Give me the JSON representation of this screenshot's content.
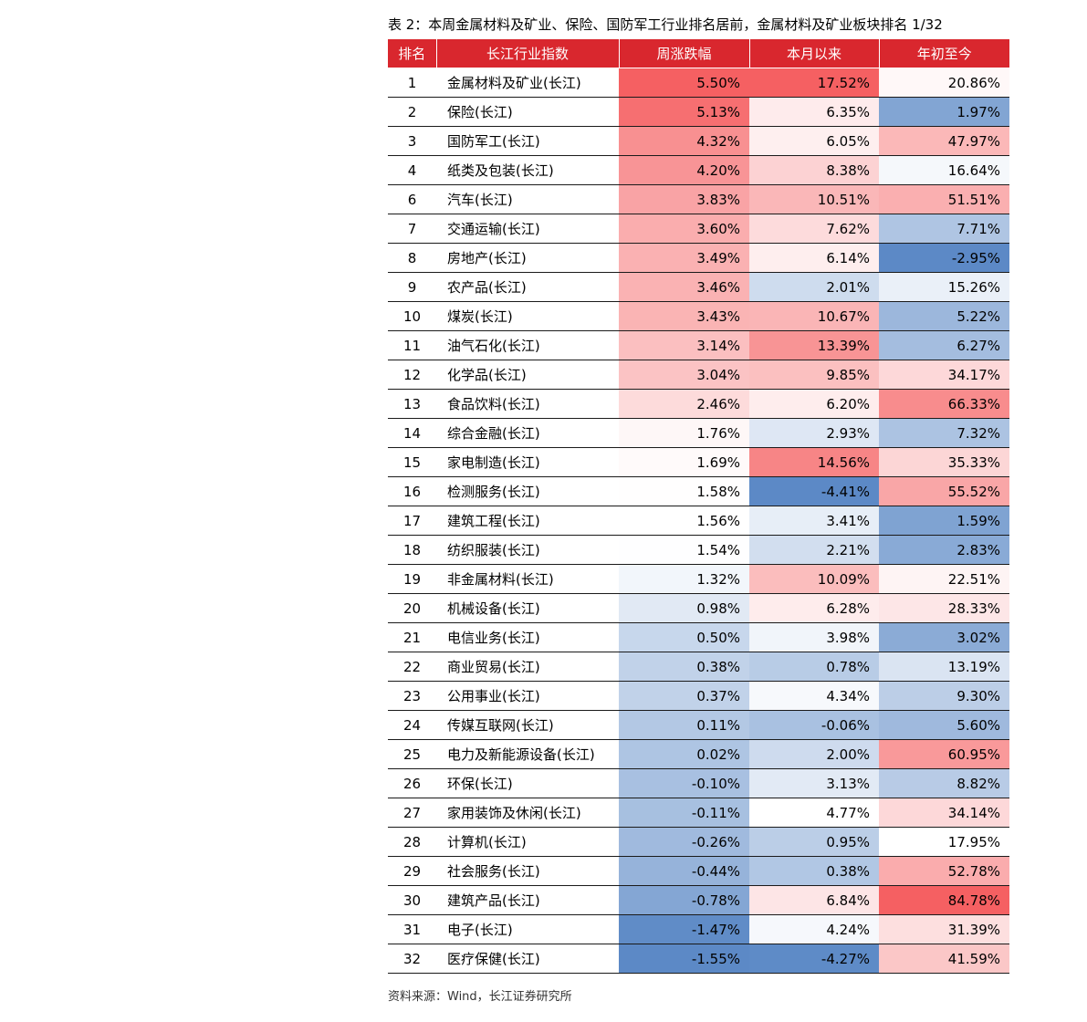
{
  "caption": "表 2：本周金属材料及矿业、保险、国防军工行业排名居前，金属材料及矿业板块排名 1/32",
  "source": "资料来源：Wind，长江证券研究所",
  "colors": {
    "header": "#d9272e",
    "heat_red_max": "#f56062",
    "heat_blue_max": "#5c89c6",
    "white": "#ffffff"
  },
  "table": {
    "headers": [
      "排名",
      "长江行业指数",
      "周涨跌幅",
      "本月以来",
      "年初至今"
    ],
    "rows": [
      {
        "rank": "1",
        "name": "金属材料及矿业(长江)",
        "week": "5.50%",
        "month": "17.52%",
        "ytd": "20.86%"
      },
      {
        "rank": "2",
        "name": "保险(长江)",
        "week": "5.13%",
        "month": "6.35%",
        "ytd": "1.97%"
      },
      {
        "rank": "3",
        "name": "国防军工(长江)",
        "week": "4.32%",
        "month": "6.05%",
        "ytd": "47.97%"
      },
      {
        "rank": "4",
        "name": "纸类及包装(长江)",
        "week": "4.20%",
        "month": "8.38%",
        "ytd": "16.64%"
      },
      {
        "rank": "6",
        "name": "汽车(长江)",
        "week": "3.83%",
        "month": "10.51%",
        "ytd": "51.51%"
      },
      {
        "rank": "7",
        "name": "交通运输(长江)",
        "week": "3.60%",
        "month": "7.62%",
        "ytd": "7.71%"
      },
      {
        "rank": "8",
        "name": "房地产(长江)",
        "week": "3.49%",
        "month": "6.14%",
        "ytd": "-2.95%"
      },
      {
        "rank": "9",
        "name": "农产品(长江)",
        "week": "3.46%",
        "month": "2.01%",
        "ytd": "15.26%"
      },
      {
        "rank": "10",
        "name": "煤炭(长江)",
        "week": "3.43%",
        "month": "10.67%",
        "ytd": "5.22%"
      },
      {
        "rank": "11",
        "name": "油气石化(长江)",
        "week": "3.14%",
        "month": "13.39%",
        "ytd": "6.27%"
      },
      {
        "rank": "12",
        "name": "化学品(长江)",
        "week": "3.04%",
        "month": "9.85%",
        "ytd": "34.17%"
      },
      {
        "rank": "13",
        "name": "食品饮料(长江)",
        "week": "2.46%",
        "month": "6.20%",
        "ytd": "66.33%"
      },
      {
        "rank": "14",
        "name": "综合金融(长江)",
        "week": "1.76%",
        "month": "2.93%",
        "ytd": "7.32%"
      },
      {
        "rank": "15",
        "name": "家电制造(长江)",
        "week": "1.69%",
        "month": "14.56%",
        "ytd": "35.33%"
      },
      {
        "rank": "16",
        "name": "检测服务(长江)",
        "week": "1.58%",
        "month": "-4.41%",
        "ytd": "55.52%"
      },
      {
        "rank": "17",
        "name": "建筑工程(长江)",
        "week": "1.56%",
        "month": "3.41%",
        "ytd": "1.59%"
      },
      {
        "rank": "18",
        "name": "纺织服装(长江)",
        "week": "1.54%",
        "month": "2.21%",
        "ytd": "2.83%"
      },
      {
        "rank": "19",
        "name": "非金属材料(长江)",
        "week": "1.32%",
        "month": "10.09%",
        "ytd": "22.51%"
      },
      {
        "rank": "20",
        "name": "机械设备(长江)",
        "week": "0.98%",
        "month": "6.28%",
        "ytd": "28.33%"
      },
      {
        "rank": "21",
        "name": "电信业务(长江)",
        "week": "0.50%",
        "month": "3.98%",
        "ytd": "3.02%"
      },
      {
        "rank": "22",
        "name": "商业贸易(长江)",
        "week": "0.38%",
        "month": "0.78%",
        "ytd": "13.19%"
      },
      {
        "rank": "23",
        "name": "公用事业(长江)",
        "week": "0.37%",
        "month": "4.34%",
        "ytd": "9.30%"
      },
      {
        "rank": "24",
        "name": "传媒互联网(长江)",
        "week": "0.11%",
        "month": "-0.06%",
        "ytd": "5.60%"
      },
      {
        "rank": "25",
        "name": "电力及新能源设备(长江)",
        "week": "0.02%",
        "month": "2.00%",
        "ytd": "60.95%"
      },
      {
        "rank": "26",
        "name": "环保(长江)",
        "week": "-0.10%",
        "month": "3.13%",
        "ytd": "8.82%"
      },
      {
        "rank": "27",
        "name": "家用装饰及休闲(长江)",
        "week": "-0.11%",
        "month": "4.77%",
        "ytd": "34.14%"
      },
      {
        "rank": "28",
        "name": "计算机(长江)",
        "week": "-0.26%",
        "month": "0.95%",
        "ytd": "17.95%"
      },
      {
        "rank": "29",
        "name": "社会服务(长江)",
        "week": "-0.44%",
        "month": "0.38%",
        "ytd": "52.78%"
      },
      {
        "rank": "30",
        "name": "建筑产品(长江)",
        "week": "-0.78%",
        "month": "6.84%",
        "ytd": "84.78%"
      },
      {
        "rank": "31",
        "name": "电子(长江)",
        "week": "-1.47%",
        "month": "4.24%",
        "ytd": "31.39%"
      },
      {
        "rank": "32",
        "name": "医疗保健(长江)",
        "week": "-1.55%",
        "month": "-4.27%",
        "ytd": "41.59%"
      }
    ]
  }
}
